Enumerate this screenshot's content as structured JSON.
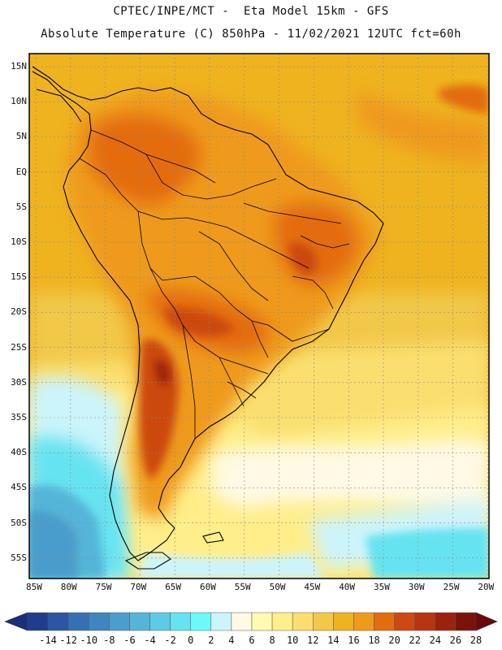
{
  "header": {
    "title_line1": "CPTEC/INPE/MCT -  Eta Model 15km - GFS",
    "title_line2": "Absolute Temperature (C) 850hPa - 11/02/2021 12UTC fct=60h"
  },
  "map": {
    "lat_labels": [
      "15N",
      "10N",
      "5N",
      "EQ",
      "5S",
      "10S",
      "15S",
      "20S",
      "25S",
      "30S",
      "35S",
      "40S",
      "45S",
      "50S",
      "55S"
    ],
    "lon_labels": [
      "85W",
      "80W",
      "75W",
      "70W",
      "65W",
      "60W",
      "55W",
      "50W",
      "45W",
      "40W",
      "35W",
      "30W",
      "25W",
      "20W"
    ]
  },
  "colorbar": {
    "labels": [
      "-14",
      "-12",
      "-10",
      "-8",
      "-6",
      "-4",
      "-2",
      "0",
      "2",
      "4",
      "6",
      "8",
      "10",
      "12",
      "14",
      "16",
      "18",
      "20",
      "22",
      "24",
      "26",
      "28"
    ],
    "colors": [
      "#1f3d8f",
      "#2a56a3",
      "#3470b3",
      "#3d86c0",
      "#4a9dcc",
      "#55b5d8",
      "#5ccce6",
      "#66e3f0",
      "#6df9fb",
      "#ccf4fb",
      "#fff9e5",
      "#fffbb0",
      "#ffee8a",
      "#fadf6f",
      "#f2c84a",
      "#efb320",
      "#ef9a1a",
      "#e46c10",
      "#cc4a0f",
      "#b8350f",
      "#9c220d",
      "#7a140b"
    ],
    "under_color": "#1a2f7a",
    "over_color": "#6b0a08"
  }
}
